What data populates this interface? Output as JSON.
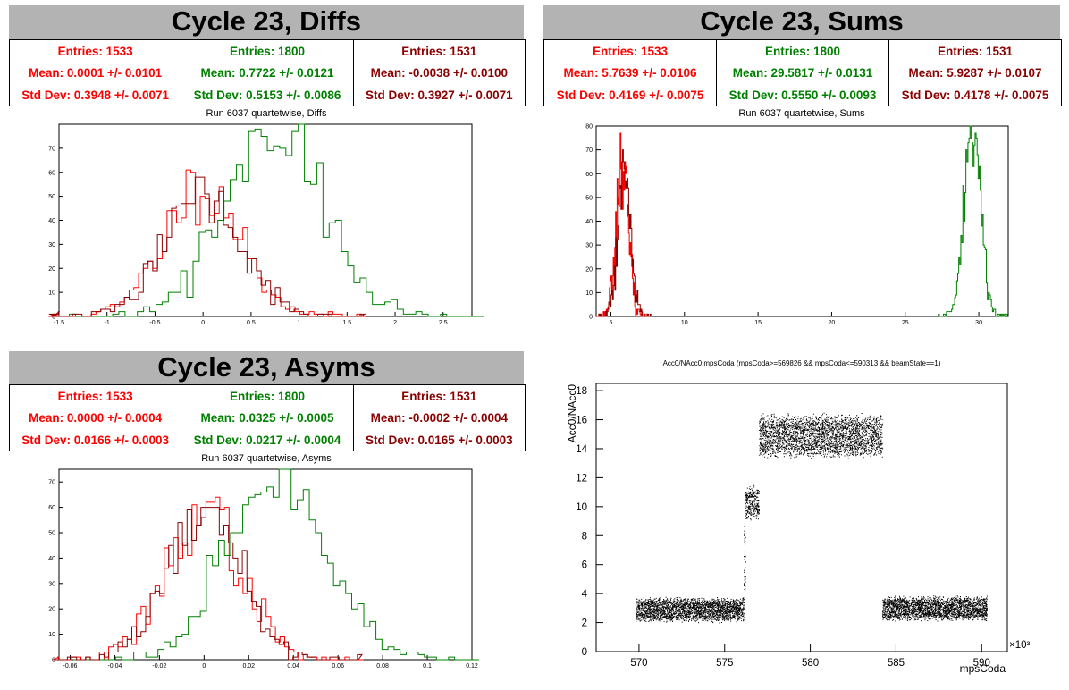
{
  "panels": {
    "diffs": {
      "heading": "Cycle 23, Diffs",
      "stats": [
        {
          "entries": "Entries: 1533",
          "mean": "Mean: 0.0001 +/- 0.0101",
          "std": "Std Dev: 0.3948 +/- 0.0071",
          "color": "#ff0000"
        },
        {
          "entries": "Entries: 1800",
          "mean": "Mean: 0.7722 +/- 0.0121",
          "std": "Std Dev: 0.5153 +/- 0.0086",
          "color": "#008000"
        },
        {
          "entries": "Entries: 1531",
          "mean": "Mean: -0.0038 +/- 0.0100",
          "std": "Std Dev: 0.3927 +/- 0.0071",
          "color": "#8b0000"
        }
      ],
      "plot_title": "Run 6037 quartetwise, Diffs"
    },
    "sums": {
      "heading": "Cycle 23, Sums",
      "stats": [
        {
          "entries": "Entries: 1533",
          "mean": "Mean: 5.7639 +/- 0.0106",
          "std": "Std Dev: 0.4169 +/- 0.0075",
          "color": "#ff0000"
        },
        {
          "entries": "Entries: 1800",
          "mean": "Mean: 29.5817 +/- 0.0131",
          "std": "Std Dev: 0.5550 +/- 0.0093",
          "color": "#008000"
        },
        {
          "entries": "Entries: 1531",
          "mean": "Mean: 5.9287 +/- 0.0107",
          "std": "Std Dev: 0.4178 +/- 0.0075",
          "color": "#8b0000"
        }
      ],
      "plot_title": "Run 6037 quartetwise, Sums"
    },
    "asyms": {
      "heading": "Cycle 23, Asyms",
      "stats": [
        {
          "entries": "Entries: 1533",
          "mean": "Mean: 0.0000 +/- 0.0004",
          "std": "Std Dev: 0.0166 +/- 0.0003",
          "color": "#ff0000"
        },
        {
          "entries": "Entries: 1800",
          "mean": "Mean: 0.0325 +/- 0.0005",
          "std": "Std Dev: 0.0217 +/- 0.0004",
          "color": "#008000"
        },
        {
          "entries": "Entries: 1531",
          "mean": "Mean: -0.0002 +/- 0.0004",
          "std": "Std Dev: 0.0165 +/- 0.0003",
          "color": "#8b0000"
        }
      ],
      "plot_title": "Run 6037 quartetwise, Asyms"
    },
    "scatter": {
      "plot_title": "Acc0/NAcc0:mpsCoda (mpsCoda>=569826 && mpsCoda<=590313 && beamState==1)"
    }
  },
  "chart_data": [
    {
      "type": "histogram",
      "id": "diffs",
      "xlim": [
        -1.5,
        2.8
      ],
      "ylim": [
        0,
        80
      ],
      "xticks": [
        -1.5,
        -1,
        -0.5,
        0,
        0.5,
        1,
        1.5,
        2,
        2.5
      ],
      "xtick_labels": [
        "-1.5",
        "-1",
        "-0.5",
        "0",
        "0.5",
        "1",
        "1.5",
        "2",
        "2.5"
      ],
      "yticks": [
        0,
        10,
        20,
        30,
        40,
        50,
        60,
        70
      ],
      "ytick_labels": [
        "0",
        "10",
        "20",
        "30",
        "40",
        "50",
        "60",
        "70"
      ],
      "series": [
        {
          "mean": 0.0001,
          "std": 0.3948,
          "entries": 1533,
          "peak": 55,
          "color": "#ff0000"
        },
        {
          "mean": 0.7722,
          "std": 0.5153,
          "entries": 1800,
          "peak": 76,
          "color": "#008000"
        },
        {
          "mean": -0.0038,
          "std": 0.3927,
          "entries": 1531,
          "peak": 54,
          "color": "#8b0000"
        }
      ]
    },
    {
      "type": "histogram",
      "id": "sums",
      "xlim": [
        4,
        32
      ],
      "ylim": [
        0,
        80
      ],
      "xticks": [
        5,
        10,
        15,
        20,
        25,
        30
      ],
      "xtick_labels": [
        "5",
        "10",
        "15",
        "20",
        "25",
        "30"
      ],
      "yticks": [
        0,
        10,
        20,
        30,
        40,
        50,
        60,
        70,
        80
      ],
      "ytick_labels": [
        "0",
        "10",
        "20",
        "30",
        "40",
        "50",
        "60",
        "70",
        "80"
      ],
      "series": [
        {
          "mean": 5.7639,
          "std": 0.4169,
          "entries": 1533,
          "peak": 65,
          "color": "#ff0000"
        },
        {
          "mean": 29.5817,
          "std": 0.555,
          "entries": 1800,
          "peak": 77,
          "color": "#008000"
        },
        {
          "mean": 5.9287,
          "std": 0.4178,
          "entries": 1531,
          "peak": 63,
          "color": "#8b0000"
        }
      ]
    },
    {
      "type": "histogram",
      "id": "asyms",
      "xlim": [
        -0.065,
        0.12
      ],
      "ylim": [
        0,
        75
      ],
      "xticks": [
        -0.06,
        -0.04,
        -0.02,
        0,
        0.02,
        0.04,
        0.06,
        0.08,
        0.1,
        0.12
      ],
      "xtick_labels": [
        "-0.06",
        "-0.04",
        "-0.02",
        "0",
        "0.02",
        "0.04",
        "0.06",
        "0.08",
        "0.1",
        "0.12"
      ],
      "yticks": [
        0,
        10,
        20,
        30,
        40,
        50,
        60,
        70
      ],
      "ytick_labels": [
        "0",
        "10",
        "20",
        "30",
        "40",
        "50",
        "60",
        "70"
      ],
      "series": [
        {
          "mean": 0.0,
          "std": 0.0166,
          "entries": 1533,
          "peak": 59,
          "color": "#ff0000"
        },
        {
          "mean": 0.0325,
          "std": 0.0217,
          "entries": 1800,
          "peak": 71,
          "color": "#008000"
        },
        {
          "mean": -0.0002,
          "std": 0.0165,
          "entries": 1531,
          "peak": 58,
          "color": "#8b0000"
        }
      ]
    },
    {
      "type": "scatter",
      "id": "acc0",
      "xlabel": "mpsCoda",
      "ylabel": "Acc0/NAcc0",
      "x_multiplier": "×10³",
      "xlim": [
        567.5,
        591.5
      ],
      "ylim": [
        0,
        18.5
      ],
      "xticks": [
        570,
        575,
        580,
        585,
        590
      ],
      "xtick_labels": [
        "570",
        "575",
        "580",
        "585",
        "590"
      ],
      "yticks": [
        0,
        2,
        4,
        6,
        8,
        10,
        12,
        14,
        16,
        18
      ],
      "ytick_labels": [
        "0",
        "2",
        "4",
        "6",
        "8",
        "10",
        "12",
        "14",
        "16",
        "18"
      ],
      "clusters": [
        {
          "x_range": [
            569.8,
            576.1
          ],
          "y_center": 2.9,
          "y_spread": 0.9,
          "n": 2600
        },
        {
          "x_range": [
            576.1,
            576.2
          ],
          "y_center": 6.5,
          "y_spread": 3.5,
          "n": 60
        },
        {
          "x_range": [
            576.2,
            577.0
          ],
          "y_center": 10.3,
          "y_spread": 1.3,
          "n": 300
        },
        {
          "x_range": [
            577.0,
            584.2
          ],
          "y_center": 14.9,
          "y_spread": 1.6,
          "n": 3000
        },
        {
          "x_range": [
            584.2,
            590.3
          ],
          "y_center": 3.0,
          "y_spread": 0.9,
          "n": 2600
        }
      ]
    }
  ]
}
